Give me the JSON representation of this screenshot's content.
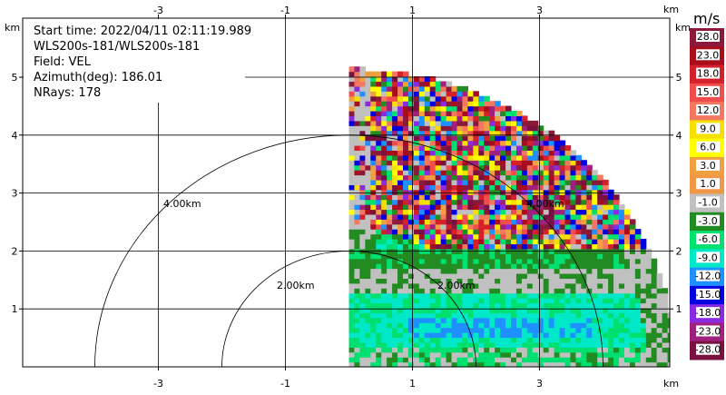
{
  "chart_data": {
    "type": "heatmap",
    "title": "",
    "info_lines": [
      "Start time: 2022/04/11 02:11:19.989",
      "WLS200s-181/WLS200s-181",
      "Field: VEL",
      "Azimuth(deg): 186.01",
      "NRays: 178"
    ],
    "x_unit": "km",
    "y_unit": "km",
    "xlim": [
      -5,
      5
    ],
    "ylim": [
      0,
      5.5
    ],
    "x_ticks": [
      -3,
      -1,
      1,
      3
    ],
    "x_tick_labels": [
      "-3",
      "-1",
      "1",
      "3"
    ],
    "y_ticks": [
      1,
      2,
      3,
      4,
      5
    ],
    "y_tick_labels": [
      "1",
      "2",
      "3",
      "4",
      "5"
    ],
    "grid": true,
    "rings": [
      {
        "radius_km": 2.0,
        "label": "2.00km"
      },
      {
        "radius_km": 4.0,
        "label": "4.00km"
      }
    ],
    "colorbar": {
      "unit": "m/s",
      "levels": [
        {
          "label": "28.0",
          "color": "#8b1a3a"
        },
        {
          "label": "23.0",
          "color": "#a80d1c"
        },
        {
          "label": "18.0",
          "color": "#d4202a"
        },
        {
          "label": "15.0",
          "color": "#f24d4d"
        },
        {
          "label": "12.0",
          "color": "#f4785f"
        },
        {
          "label": "9.0",
          "color": "#f5e000"
        },
        {
          "label": "6.0",
          "color": "#ffff00"
        },
        {
          "label": "3.0",
          "color": "#f0a040"
        },
        {
          "label": "1.0",
          "color": "#f09848"
        },
        {
          "label": "-1.0",
          "color": "#c0c0c0"
        },
        {
          "label": "-3.0",
          "color": "#228b22"
        },
        {
          "label": "-6.0",
          "color": "#00e070"
        },
        {
          "label": "-9.0",
          "color": "#00e8c8"
        },
        {
          "label": "-12.0",
          "color": "#1e90ff"
        },
        {
          "label": "-15.0",
          "color": "#0000e0"
        },
        {
          "label": "-18.0",
          "color": "#8a2be2"
        },
        {
          "label": "-23.0",
          "color": "#a0207e"
        },
        {
          "label": "-28.0",
          "color": "#7a1040"
        }
      ]
    }
  }
}
